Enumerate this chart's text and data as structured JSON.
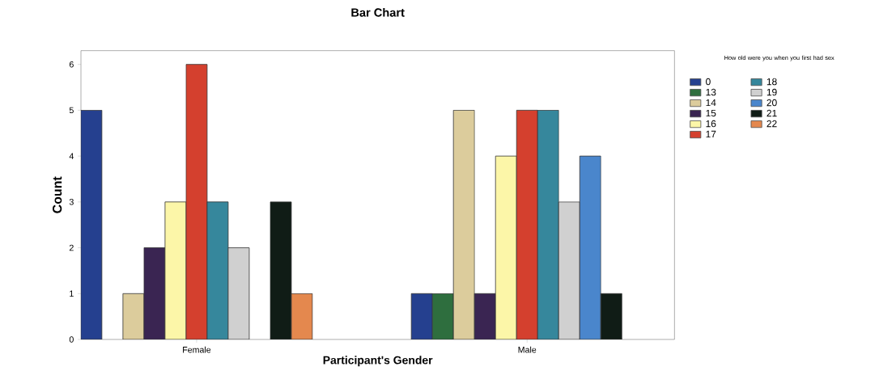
{
  "chart_data": {
    "type": "bar",
    "title": "Bar Chart",
    "xlabel": "Participant's Gender",
    "ylabel": "Count",
    "legend_title": "How old were you when you first had sex",
    "categories": [
      "Female",
      "Male"
    ],
    "ylim": [
      0,
      6.3
    ],
    "yticks": [
      0,
      1,
      2,
      3,
      4,
      5,
      6
    ],
    "grid": false,
    "legend": "right",
    "series": [
      {
        "name": "0",
        "color": "#25408f",
        "values": [
          5,
          1
        ]
      },
      {
        "name": "13",
        "color": "#2e6e3e",
        "values": [
          null,
          1
        ]
      },
      {
        "name": "14",
        "color": "#dccc9c",
        "values": [
          1,
          5
        ]
      },
      {
        "name": "15",
        "color": "#3a2552",
        "values": [
          2,
          1
        ]
      },
      {
        "name": "16",
        "color": "#fcf6a8",
        "values": [
          3,
          4
        ]
      },
      {
        "name": "17",
        "color": "#d4402e",
        "values": [
          6,
          5
        ]
      },
      {
        "name": "18",
        "color": "#36879c",
        "values": [
          3,
          5
        ]
      },
      {
        "name": "19",
        "color": "#d0d0d0",
        "values": [
          2,
          3
        ]
      },
      {
        "name": "20",
        "color": "#4a86cc",
        "values": [
          null,
          4
        ]
      },
      {
        "name": "21",
        "color": "#101c16",
        "values": [
          3,
          1
        ]
      },
      {
        "name": "22",
        "color": "#e4884e",
        "values": [
          1,
          null
        ]
      }
    ]
  }
}
